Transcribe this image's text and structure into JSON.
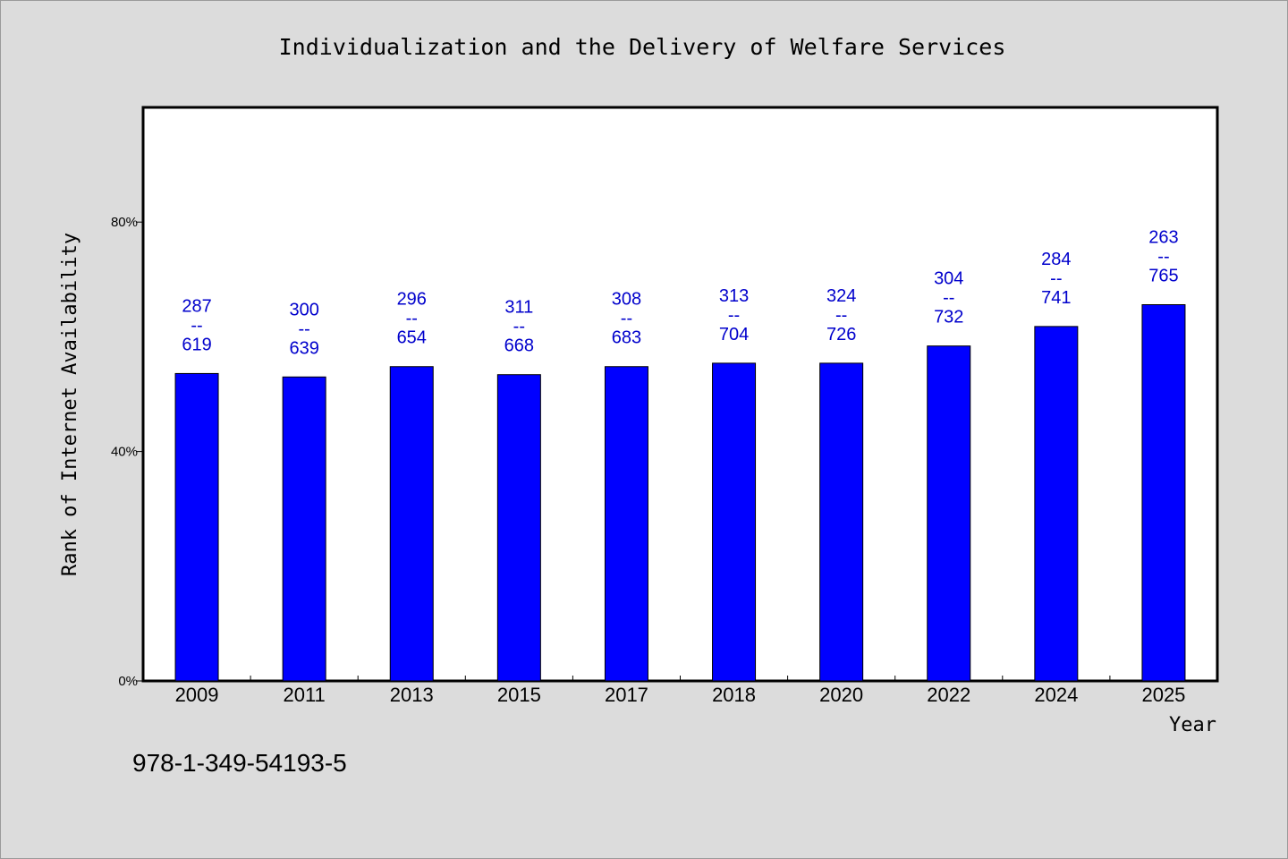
{
  "chart_data": {
    "type": "bar",
    "title": "Individualization and the Delivery of Welfare Services",
    "xlabel": "Year",
    "ylabel": "Rank of Internet Availability",
    "categories": [
      "2009",
      "2011",
      "2013",
      "2015",
      "2017",
      "2018",
      "2020",
      "2022",
      "2024",
      "2025"
    ],
    "values": [
      53.6,
      53.0,
      54.8,
      53.4,
      54.8,
      55.4,
      55.4,
      58.4,
      61.8,
      65.6
    ],
    "value_unit": "%",
    "data_labels": [
      [
        "287",
        "--",
        "619"
      ],
      [
        "300",
        "--",
        "639"
      ],
      [
        "296",
        "--",
        "654"
      ],
      [
        "311",
        "--",
        "668"
      ],
      [
        "308",
        "--",
        "683"
      ],
      [
        "313",
        "--",
        "704"
      ],
      [
        "324",
        "--",
        "726"
      ],
      [
        "304",
        "--",
        "732"
      ],
      [
        "284",
        "--",
        "741"
      ],
      [
        "263",
        "--",
        "765"
      ]
    ],
    "ylim": [
      0,
      100
    ],
    "yticks": [
      0,
      40,
      80
    ],
    "ytick_labels": [
      "0%",
      "40%",
      "80%"
    ],
    "grid": false,
    "legend": "none",
    "bar_color": "#0000ff",
    "label_color": "#0000cc",
    "plot_background": "#ffffff",
    "page_background": "#dcdcdc"
  },
  "footer": {
    "isbn": "978-1-349-54193-5"
  }
}
